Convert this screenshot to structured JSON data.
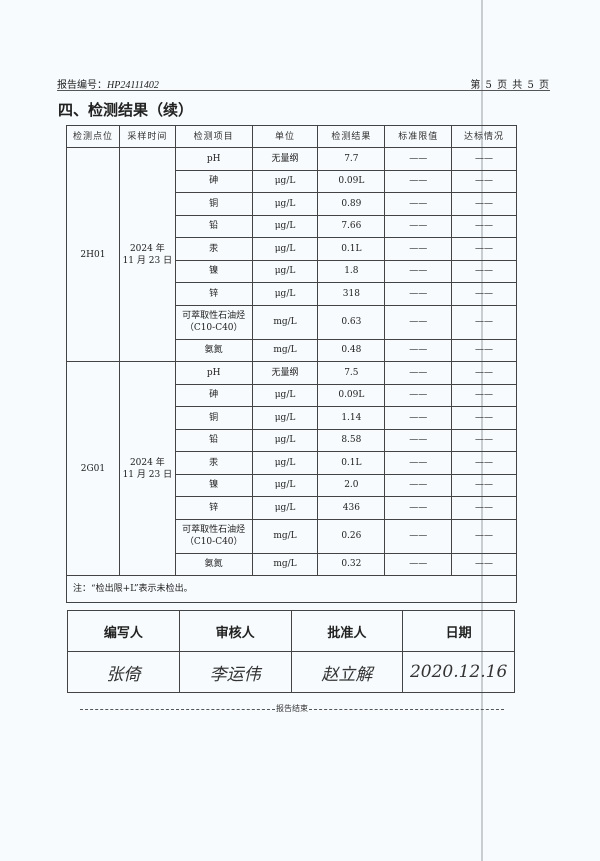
{
  "header": {
    "report_no_label": "报告编号：",
    "report_no": "HP24111402",
    "page_info": "第 5 页 共 5 页"
  },
  "section_title": "四、检测结果（续）",
  "table": {
    "columns": [
      "检测点位",
      "采样时间",
      "检测项目",
      "单位",
      "检测结果",
      "标准限值",
      "达标情况"
    ],
    "groups": [
      {
        "point": "2H01",
        "date_line1": "2024 年",
        "date_line2": "11 月 23 日",
        "rows": [
          {
            "item": "pH",
            "unit": "无量纲",
            "result": "7.7"
          },
          {
            "item": "砷",
            "unit": "μg/L",
            "result": "0.09L"
          },
          {
            "item": "铜",
            "unit": "μg/L",
            "result": "0.89"
          },
          {
            "item": "铅",
            "unit": "μg/L",
            "result": "7.66"
          },
          {
            "item": "汞",
            "unit": "μg/L",
            "result": "0.1L"
          },
          {
            "item": "镍",
            "unit": "μg/L",
            "result": "1.8"
          },
          {
            "item": "锌",
            "unit": "μg/L",
            "result": "318"
          },
          {
            "item": "可萃取性石油烃（C10-C40）",
            "unit": "mg/L",
            "result": "0.63"
          },
          {
            "item": "氨氮",
            "unit": "mg/L",
            "result": "0.48"
          }
        ]
      },
      {
        "point": "2G01",
        "date_line1": "2024 年",
        "date_line2": "11 月 23 日",
        "rows": [
          {
            "item": "pH",
            "unit": "无量纲",
            "result": "7.5"
          },
          {
            "item": "砷",
            "unit": "μg/L",
            "result": "0.09L"
          },
          {
            "item": "铜",
            "unit": "μg/L",
            "result": "1.14"
          },
          {
            "item": "铅",
            "unit": "μg/L",
            "result": "8.58"
          },
          {
            "item": "汞",
            "unit": "μg/L",
            "result": "0.1L"
          },
          {
            "item": "镍",
            "unit": "μg/L",
            "result": "2.0"
          },
          {
            "item": "锌",
            "unit": "μg/L",
            "result": "436"
          },
          {
            "item": "可萃取性石油烃（C10-C40）",
            "unit": "mg/L",
            "result": "0.26"
          },
          {
            "item": "氨氮",
            "unit": "mg/L",
            "result": "0.32"
          }
        ]
      }
    ],
    "standard_limit": "——",
    "compliance": "——",
    "note": "注：“检出限+L”表示未检出。"
  },
  "signatures": {
    "headers": [
      "编写人",
      "审核人",
      "批准人",
      "日期"
    ],
    "values": [
      "张倚",
      "李运伟",
      "赵立解",
      "2020.12.16"
    ]
  },
  "end_text": "报告结束"
}
